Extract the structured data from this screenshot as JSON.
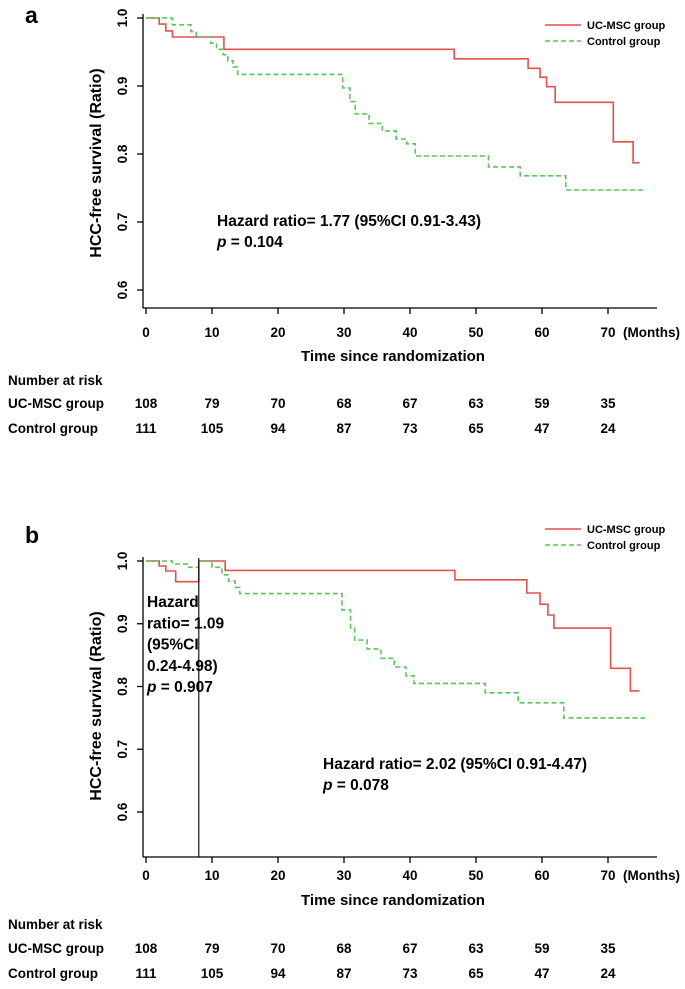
{
  "figure_background": "#ffffff",
  "text_color": "#000000",
  "chart_data": [
    {
      "panel_label": "a",
      "type": "line",
      "subtype": "kaplan_meier_step_survival",
      "xlabel": "Time since randomization",
      "x_unit_label": "(Months)",
      "ylabel": "HCC-free survival (Ratio)",
      "xticks": [
        0,
        10,
        20,
        30,
        40,
        50,
        60,
        70
      ],
      "ytick_labels": [
        "1.0",
        "0.9",
        "0.8",
        "0.7",
        "0.6"
      ],
      "xlim": [
        0,
        76
      ],
      "ylim": [
        0.55,
        1.0
      ],
      "grid": false,
      "legend_position": "top-right",
      "series": [
        {
          "name": "UC-MSC group",
          "color": "#e2524b",
          "line_style": "solid",
          "steps": [
            [
              0,
              1.0
            ],
            [
              2,
              0.991
            ],
            [
              3,
              0.981
            ],
            [
              4,
              0.972
            ],
            [
              11.8,
              0.954
            ],
            [
              46.7,
              0.94
            ],
            [
              57.9,
              0.926
            ],
            [
              59.7,
              0.913
            ],
            [
              60.7,
              0.899
            ],
            [
              62,
              0.876
            ],
            [
              70.8,
              0.818
            ],
            [
              73.8,
              0.787
            ],
            [
              74.8,
              0.787
            ]
          ]
        },
        {
          "name": "Control group",
          "color": "#5bc45b",
          "line_style": "dashed",
          "steps": [
            [
              0,
              1.0
            ],
            [
              4,
              0.99
            ],
            [
              6.8,
              0.98
            ],
            [
              7.6,
              0.972
            ],
            [
              9.8,
              0.963
            ],
            [
              10.7,
              0.954
            ],
            [
              11.7,
              0.946
            ],
            [
              12.4,
              0.937
            ],
            [
              13.2,
              0.928
            ],
            [
              13.9,
              0.917
            ],
            [
              29.8,
              0.897
            ],
            [
              30.9,
              0.877
            ],
            [
              31.7,
              0.859
            ],
            [
              33.8,
              0.845
            ],
            [
              35.8,
              0.834
            ],
            [
              37.9,
              0.822
            ],
            [
              39.5,
              0.815
            ],
            [
              40.8,
              0.797
            ],
            [
              51.9,
              0.781
            ],
            [
              56.7,
              0.768
            ],
            [
              63.6,
              0.747
            ],
            [
              75.6,
              0.747
            ]
          ]
        }
      ],
      "annotations": [
        {
          "id": "hazard-ratio-a",
          "lines": [
            "Hazard ratio= 1.77 (95%CI 0.91-3.43)",
            "p = 0.104"
          ]
        }
      ],
      "number_at_risk": {
        "title": "Number at risk",
        "time_points": [
          0,
          10,
          20,
          30,
          40,
          50,
          60,
          70
        ],
        "rows": [
          {
            "name": "UC-MSC group",
            "values": [
              "108",
              "79",
              "70",
              "68",
              "67",
              "63",
              "59",
              "35"
            ]
          },
          {
            "name": "Control group",
            "values": [
              "111",
              "105",
              "94",
              "87",
              "73",
              "65",
              "47",
              "24"
            ]
          }
        ]
      }
    },
    {
      "panel_label": "b",
      "type": "line",
      "subtype": "kaplan_meier_step_survival_landmark",
      "landmark_line_month": 8,
      "xlabel": "Time since randomization",
      "x_unit_label": "(Months)",
      "ylabel": "HCC-free survival (Ratio)",
      "xticks": [
        0,
        10,
        20,
        30,
        40,
        50,
        60,
        70
      ],
      "ytick_labels": [
        "1.0",
        "0.9",
        "0.8",
        "0.7",
        "0.6"
      ],
      "xlim": [
        0,
        76
      ],
      "ylim": [
        0.55,
        1.0
      ],
      "grid": false,
      "legend_position": "top-right",
      "series": [
        {
          "name": "UC-MSC group",
          "color": "#e2524b",
          "line_style": "solid",
          "steps": [
            [
              0,
              1.0
            ],
            [
              2,
              0.992
            ],
            [
              3,
              0.984
            ],
            [
              4.5,
              0.967
            ],
            [
              8,
              1.0
            ],
            [
              12,
              0.985
            ],
            [
              46.8,
              0.97
            ],
            [
              57.7,
              0.949
            ],
            [
              59.7,
              0.931
            ],
            [
              60.9,
              0.914
            ],
            [
              61.8,
              0.893
            ],
            [
              70.4,
              0.829
            ],
            [
              73.4,
              0.793
            ],
            [
              74.8,
              0.793
            ]
          ]
        },
        {
          "name": "Control group",
          "color": "#5bc45b",
          "line_style": "dashed",
          "steps": [
            [
              0,
              1.0
            ],
            [
              4,
              0.995
            ],
            [
              6.5,
              0.99
            ],
            [
              8,
              1.0
            ],
            [
              10,
              0.99
            ],
            [
              11.5,
              0.978
            ],
            [
              12.5,
              0.968
            ],
            [
              13.5,
              0.958
            ],
            [
              14.2,
              0.948
            ],
            [
              29.7,
              0.922
            ],
            [
              31,
              0.893
            ],
            [
              31.6,
              0.874
            ],
            [
              33.5,
              0.86
            ],
            [
              35.6,
              0.845
            ],
            [
              37.6,
              0.831
            ],
            [
              39.4,
              0.817
            ],
            [
              40.6,
              0.805
            ],
            [
              51.4,
              0.79
            ],
            [
              56.4,
              0.774
            ],
            [
              63.3,
              0.75
            ],
            [
              75.6,
              0.75
            ]
          ]
        }
      ],
      "annotations": [
        {
          "id": "hazard-ratio-b-early",
          "lines": [
            "Hazard",
            "ratio= 1.09",
            "(95%CI",
            "0.24-4.98)",
            "p = 0.907"
          ]
        },
        {
          "id": "hazard-ratio-b-late",
          "lines": [
            "Hazard ratio= 2.02 (95%CI 0.91-4.47)",
            "p = 0.078"
          ]
        }
      ],
      "number_at_risk": {
        "title": "Number at risk",
        "time_points": [
          0,
          10,
          20,
          30,
          40,
          50,
          60,
          70
        ],
        "rows": [
          {
            "name": "UC-MSC group",
            "values": [
              "108",
              "79",
              "70",
              "68",
              "67",
              "63",
              "59",
              "35"
            ]
          },
          {
            "name": "Control group",
            "values": [
              "111",
              "105",
              "94",
              "87",
              "73",
              "65",
              "47",
              "24"
            ]
          }
        ]
      }
    }
  ]
}
